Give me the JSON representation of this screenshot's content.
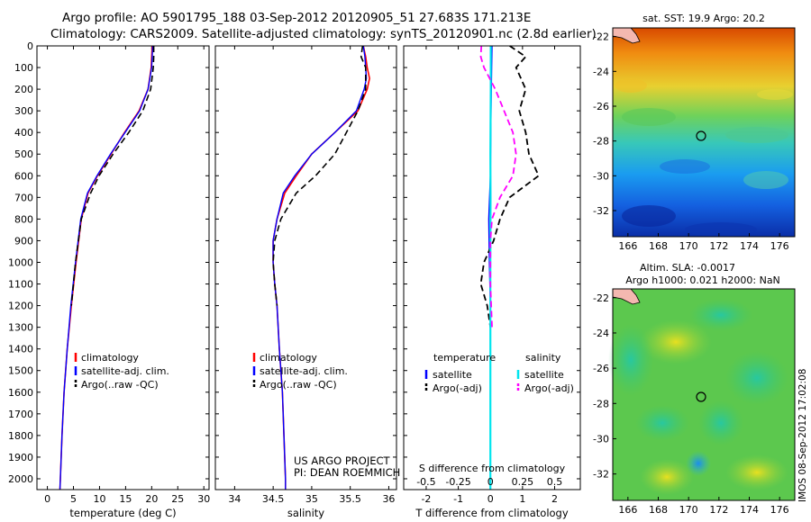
{
  "header": {
    "line1": "Argo profile: AO 5901795_188 03-Sep-2012 20120905_51 27.683S 171.213E",
    "line2": "Climatology: CARS2009. Satellite-adjusted climatology: synTS_20120901.nc (2.8d earlier)"
  },
  "depth_ticks": [
    "0",
    "100",
    "200",
    "300",
    "400",
    "500",
    "600",
    "700",
    "800",
    "900",
    "1000",
    "1100",
    "1200",
    "1300",
    "1400",
    "1500",
    "1600",
    "1700",
    "1800",
    "1900",
    "2000"
  ],
  "credit": {
    "line1": "US ARGO PROJECT",
    "line2": "PI: DEAN ROEMMICH"
  },
  "timestamp": "IMOS 08-Sep-2012 17:02:08",
  "colors": {
    "climatology": "#ff0000",
    "satellite": "#0000ff",
    "argo": "#000000",
    "cyan": "#00e5ee",
    "magenta": "#ff00ff"
  },
  "chart_data": [
    {
      "type": "line",
      "xlabel": "temperature (deg C)",
      "x_ticks": [
        "0",
        "5",
        "10",
        "15",
        "20",
        "25",
        "30"
      ],
      "xlim": [
        -2,
        31
      ],
      "ylim": [
        2050,
        0
      ],
      "legend": [
        "climatology",
        "satellite-adj. clim.",
        "Argo(..raw -QC)"
      ],
      "series": [
        {
          "name": "climatology",
          "points": [
            [
              20.1,
              0
            ],
            [
              20,
              50
            ],
            [
              19.9,
              100
            ],
            [
              19.3,
              200
            ],
            [
              17.6,
              300
            ],
            [
              14.8,
              400
            ],
            [
              12.2,
              500
            ],
            [
              9.6,
              600
            ],
            [
              7.8,
              680
            ],
            [
              6.5,
              800
            ],
            [
              5.5,
              1000
            ],
            [
              4.6,
              1200
            ],
            [
              3.8,
              1400
            ],
            [
              3.2,
              1600
            ],
            [
              2.8,
              1800
            ],
            [
              2.5,
              2000
            ],
            [
              2.4,
              2050
            ]
          ]
        },
        {
          "name": "satellite-adj. clim.",
          "points": [
            [
              20.2,
              0
            ],
            [
              20.1,
              50
            ],
            [
              20,
              100
            ],
            [
              19.3,
              200
            ],
            [
              17.7,
              300
            ],
            [
              14.9,
              400
            ],
            [
              12.1,
              500
            ],
            [
              9.5,
              600
            ],
            [
              7.7,
              680
            ],
            [
              6.4,
              800
            ],
            [
              5.4,
              1000
            ],
            [
              4.5,
              1200
            ],
            [
              3.8,
              1400
            ],
            [
              3.2,
              1600
            ],
            [
              2.8,
              1800
            ],
            [
              2.5,
              2000
            ],
            [
              2.4,
              2050
            ]
          ]
        },
        {
          "name": "Argo(..raw -QC)",
          "points": [
            [
              20.4,
              0
            ],
            [
              20.4,
              50
            ],
            [
              20.3,
              100
            ],
            [
              19.8,
              200
            ],
            [
              18.3,
              300
            ],
            [
              15.6,
              400
            ],
            [
              12.6,
              500
            ],
            [
              9.9,
              600
            ],
            [
              8.3,
              680
            ],
            [
              6.5,
              800
            ],
            [
              5.4,
              1000
            ],
            [
              4.6,
              1200
            ]
          ]
        }
      ]
    },
    {
      "type": "line",
      "xlabel": "salinity",
      "x_ticks": [
        "34",
        "34.5",
        "35",
        "35.5",
        "36"
      ],
      "xlim": [
        33.75,
        36.1
      ],
      "ylim": [
        2050,
        0
      ],
      "legend": [
        "climatology",
        "satellite-adj. clim.",
        "Argo(..raw -QC)"
      ],
      "series": [
        {
          "name": "climatology",
          "points": [
            [
              35.67,
              0
            ],
            [
              35.7,
              50
            ],
            [
              35.72,
              100
            ],
            [
              35.75,
              150
            ],
            [
              35.72,
              200
            ],
            [
              35.6,
              300
            ],
            [
              35.3,
              400
            ],
            [
              35,
              500
            ],
            [
              34.8,
              600
            ],
            [
              34.65,
              680
            ],
            [
              34.55,
              800
            ],
            [
              34.5,
              900
            ],
            [
              34.5,
              1000
            ],
            [
              34.52,
              1100
            ],
            [
              34.55,
              1200
            ],
            [
              34.58,
              1400
            ],
            [
              34.62,
              1600
            ],
            [
              34.64,
              1800
            ],
            [
              34.66,
              2000
            ],
            [
              34.66,
              2050
            ]
          ]
        },
        {
          "name": "satellite-adj. clim.",
          "points": [
            [
              35.67,
              0
            ],
            [
              35.69,
              50
            ],
            [
              35.7,
              100
            ],
            [
              35.71,
              150
            ],
            [
              35.68,
              200
            ],
            [
              35.58,
              300
            ],
            [
              35.3,
              400
            ],
            [
              35,
              500
            ],
            [
              34.78,
              600
            ],
            [
              34.63,
              680
            ],
            [
              34.55,
              800
            ],
            [
              34.5,
              900
            ],
            [
              34.5,
              1000
            ],
            [
              34.52,
              1100
            ],
            [
              34.55,
              1200
            ],
            [
              34.58,
              1400
            ],
            [
              34.62,
              1600
            ],
            [
              34.64,
              1800
            ],
            [
              34.66,
              2000
            ],
            [
              34.66,
              2050
            ]
          ]
        },
        {
          "name": "Argo(..raw -QC)",
          "points": [
            [
              35.66,
              0
            ],
            [
              35.64,
              50
            ],
            [
              35.7,
              100
            ],
            [
              35.7,
              200
            ],
            [
              35.6,
              300
            ],
            [
              35.45,
              400
            ],
            [
              35.3,
              500
            ],
            [
              35.05,
              600
            ],
            [
              34.8,
              680
            ],
            [
              34.6,
              800
            ],
            [
              34.52,
              900
            ],
            [
              34.5,
              1000
            ],
            [
              34.52,
              1100
            ],
            [
              34.55,
              1200
            ]
          ]
        }
      ]
    },
    {
      "type": "line",
      "xlabel": "T difference from climatology",
      "x2label": "S difference from climatology",
      "x_ticks": [
        "-2",
        "-1",
        "0",
        "1",
        "2"
      ],
      "x2_ticks": [
        "-0.5",
        "-0.25",
        "0",
        "0.25",
        "0.5"
      ],
      "xlim": [
        -2.7,
        2.8
      ],
      "ylim": [
        2050,
        0
      ],
      "legend_headers": [
        "temperature",
        "salinity"
      ],
      "legend": [
        "satellite",
        "Argo(-adj)",
        "satellite",
        "Argo(-adj)"
      ],
      "series": [
        {
          "name": "satellite",
          "points": [
            [
              0.05,
              0
            ],
            [
              0.04,
              100
            ],
            [
              0.02,
              300
            ],
            [
              0,
              600
            ],
            [
              -0.05,
              800
            ],
            [
              -0.03,
              1000
            ],
            [
              0,
              1200
            ],
            [
              0,
              2050
            ]
          ]
        },
        {
          "name": "Argo(-adj)",
          "points": [
            [
              0.6,
              0
            ],
            [
              1.1,
              50
            ],
            [
              0.8,
              100
            ],
            [
              1.1,
              200
            ],
            [
              0.9,
              300
            ],
            [
              1.1,
              400
            ],
            [
              1.2,
              500
            ],
            [
              1.5,
              600
            ],
            [
              0.6,
              700
            ],
            [
              0.3,
              800
            ],
            [
              0.1,
              900
            ],
            [
              -0.2,
              1000
            ],
            [
              -0.3,
              1100
            ],
            [
              -0.1,
              1200
            ],
            [
              0,
              1300
            ]
          ]
        },
        {
          "name": "satellite",
          "points": [
            [
              0.01,
              0
            ],
            [
              0.01,
              200
            ],
            [
              0,
              500
            ],
            [
              0.005,
              700
            ],
            [
              0,
              1000
            ],
            [
              0,
              2050
            ]
          ]
        },
        {
          "name": "Argo(-adj)",
          "points": [
            [
              -0.28,
              0
            ],
            [
              -0.3,
              50
            ],
            [
              -0.2,
              100
            ],
            [
              0.15,
              200
            ],
            [
              0.7,
              400
            ],
            [
              0.8,
              500
            ],
            [
              0.7,
              600
            ],
            [
              0.3,
              700
            ],
            [
              0.05,
              800
            ],
            [
              0,
              900
            ],
            [
              0,
              1100
            ],
            [
              0.05,
              1300
            ]
          ]
        }
      ]
    },
    {
      "type": "heatmap",
      "title": "sat. SST: 19.9 Argo: 20.2",
      "x_ticks": [
        "166",
        "168",
        "170",
        "172",
        "174",
        "176"
      ],
      "y_ticks": [
        "-22",
        "-24",
        "-26",
        "-28",
        "-30",
        "-32"
      ],
      "xlim": [
        165,
        177
      ],
      "ylim": [
        -33.5,
        -21.5
      ],
      "marker": [
        171.213,
        -27.683
      ]
    },
    {
      "type": "heatmap",
      "title": "Altim. SLA: -0.0017",
      "subtitle": "Argo h1000: 0.021 h2000: NaN",
      "x_ticks": [
        "166",
        "168",
        "170",
        "172",
        "174",
        "176"
      ],
      "y_ticks": [
        "-22",
        "-24",
        "-26",
        "-28",
        "-30",
        "-32"
      ],
      "xlim": [
        165,
        177
      ],
      "ylim": [
        -33.5,
        -21.5
      ],
      "marker": [
        171.213,
        -27.683
      ]
    }
  ]
}
